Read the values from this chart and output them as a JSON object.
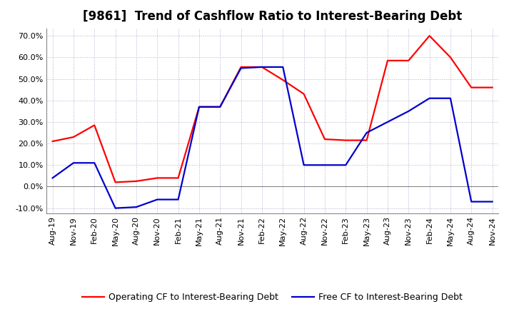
{
  "title": "[9861]  Trend of Cashflow Ratio to Interest-Bearing Debt",
  "x_labels": [
    "Aug-19",
    "Nov-19",
    "Feb-20",
    "May-20",
    "Aug-20",
    "Nov-20",
    "Feb-21",
    "May-21",
    "Aug-21",
    "Nov-21",
    "Feb-22",
    "May-22",
    "Aug-22",
    "Nov-22",
    "Feb-23",
    "May-23",
    "Aug-23",
    "Nov-23",
    "Feb-24",
    "May-24",
    "Aug-24",
    "Nov-24"
  ],
  "operating_cf": [
    0.21,
    0.23,
    0.285,
    0.02,
    0.025,
    0.04,
    0.04,
    0.37,
    0.37,
    0.555,
    0.555,
    0.495,
    0.43,
    0.22,
    0.215,
    0.215,
    0.585,
    0.585,
    0.7,
    0.6,
    0.46,
    0.46
  ],
  "free_cf": [
    0.04,
    0.11,
    0.11,
    -0.1,
    -0.095,
    -0.06,
    -0.06,
    0.37,
    0.37,
    0.55,
    0.555,
    0.555,
    0.1,
    0.1,
    0.1,
    0.25,
    0.3,
    0.35,
    0.41,
    0.41,
    -0.07,
    -0.07
  ],
  "operating_color": "#ff0000",
  "free_color": "#0000cc",
  "background_color": "#ffffff",
  "grid_color": "#b0b0d0",
  "ylim": [
    -0.125,
    0.735
  ],
  "yticks": [
    -0.1,
    0.0,
    0.1,
    0.2,
    0.3,
    0.4,
    0.5,
    0.6,
    0.7
  ],
  "legend_op": "Operating CF to Interest-Bearing Debt",
  "legend_free": "Free CF to Interest-Bearing Debt",
  "title_fontsize": 12,
  "axis_fontsize": 8,
  "legend_fontsize": 9,
  "line_width": 1.6
}
